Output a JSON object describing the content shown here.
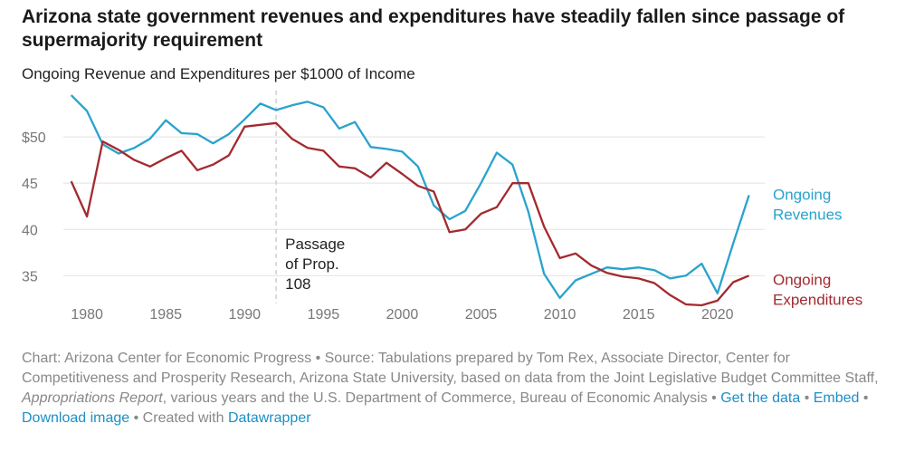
{
  "title": "Arizona state government revenues and expenditures have steadily fallen since passage of supermajority requirement",
  "subtitle": "Ongoing Revenue and Expenditures per $1000 of Income",
  "chart_data": {
    "type": "line",
    "xlim": [
      1978.5,
      2023
    ],
    "ylim": [
      32,
      55
    ],
    "grid": true,
    "x_ticks": [
      1980,
      1985,
      1990,
      1995,
      2000,
      2005,
      2010,
      2015,
      2020
    ],
    "x_tick_labels": [
      "1980",
      "1985",
      "1990",
      "1995",
      "2000",
      "2005",
      "2010",
      "2015",
      "2020"
    ],
    "y_ticks": [
      35,
      40,
      45,
      50
    ],
    "y_tick_labels": [
      "35",
      "40",
      "45",
      "$50"
    ],
    "annotation": {
      "x": 1992,
      "lines": [
        "Passage",
        "of Prop.",
        "108"
      ]
    },
    "series": [
      {
        "name": "Ongoing Revenues",
        "label_lines": [
          "Ongoing",
          "Revenues"
        ],
        "color": "#29a3cc",
        "x": [
          1979,
          1980,
          1981,
          1982,
          1983,
          1984,
          1985,
          1986,
          1987,
          1988,
          1989,
          1990,
          1991,
          1992,
          1993,
          1994,
          1995,
          1996,
          1997,
          1998,
          1999,
          2000,
          2001,
          2002,
          2003,
          2004,
          2005,
          2006,
          2007,
          2008,
          2009,
          2010,
          2011,
          2012,
          2013,
          2014,
          2015,
          2016,
          2017,
          2018,
          2019,
          2020,
          2021,
          2022
        ],
        "values": [
          54.5,
          52.8,
          49.2,
          48.2,
          48.8,
          49.8,
          51.8,
          50.4,
          50.3,
          49.3,
          50.3,
          51.9,
          53.6,
          52.9,
          53.4,
          53.8,
          53.2,
          50.9,
          51.6,
          48.9,
          48.7,
          48.4,
          46.8,
          42.6,
          41.1,
          42.0,
          45.0,
          48.3,
          47.0,
          41.9,
          35.2,
          32.6,
          34.5,
          35.2,
          35.9,
          35.7,
          35.9,
          35.6,
          34.7,
          35.0,
          36.3,
          33.1,
          38.5,
          43.7
        ]
      },
      {
        "name": "Ongoing Expenditures",
        "label_lines": [
          "Ongoing",
          "Expenditures"
        ],
        "color": "#a32a2f",
        "x": [
          1979,
          1980,
          1981,
          1982,
          1983,
          1984,
          1985,
          1986,
          1987,
          1988,
          1989,
          1990,
          1991,
          1992,
          1993,
          1994,
          1995,
          1996,
          1997,
          1998,
          1999,
          2000,
          2001,
          2002,
          2003,
          2004,
          2005,
          2006,
          2007,
          2008,
          2009,
          2010,
          2011,
          2012,
          2013,
          2014,
          2015,
          2016,
          2017,
          2018,
          2019,
          2020,
          2021,
          2022
        ],
        "values": [
          45.2,
          41.4,
          49.5,
          48.6,
          47.5,
          46.8,
          47.7,
          48.5,
          46.4,
          47.0,
          48.0,
          51.1,
          51.3,
          51.5,
          49.8,
          48.8,
          48.5,
          46.8,
          46.6,
          45.6,
          47.2,
          46.0,
          44.7,
          44.1,
          39.7,
          40.0,
          41.7,
          42.4,
          45.0,
          45.0,
          40.3,
          36.9,
          37.4,
          36.1,
          35.3,
          34.9,
          34.7,
          34.2,
          32.9,
          31.9,
          31.8,
          32.3,
          34.3,
          35.0
        ]
      }
    ]
  },
  "footer": {
    "text": "Chart: Arizona Center for Economic Progress • Source: Tabulations prepared by Tom Rex, Associate Director, Center for Competitiveness and Prosperity Research, Arizona State University, based on data from the Joint Legislative Budget Committee Staff, ",
    "italic": "Appropriations Report",
    "text2": ", various years and the U.S. Department of Commerce, Bureau of Economic Analysis • ",
    "link_data": "Get the data",
    "sep1": " • ",
    "link_embed": "Embed",
    "sep2": " • ",
    "link_download": "Download image",
    "sep3": " • Created with ",
    "link_datawrapper": "Datawrapper"
  }
}
